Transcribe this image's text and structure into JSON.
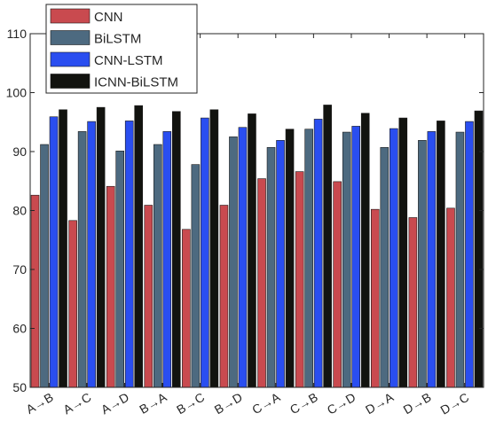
{
  "chart_data": {
    "type": "bar",
    "title": "",
    "xlabel": "",
    "ylabel": "",
    "ylim": [
      50,
      110
    ],
    "yticks": [
      50,
      60,
      70,
      80,
      90,
      100,
      110
    ],
    "grid": false,
    "legend_position": "top-left",
    "categories": [
      "A→B",
      "A→C",
      "A→D",
      "B→A",
      "B→C",
      "B→D",
      "C→A",
      "C→B",
      "C→D",
      "D→A",
      "D→B",
      "D→C"
    ],
    "series": [
      {
        "name": "CNN",
        "color": "#c94a4f",
        "values": [
          82.6,
          78.3,
          84.1,
          80.9,
          76.8,
          80.9,
          85.4,
          86.6,
          84.9,
          80.2,
          78.8,
          80.4
        ]
      },
      {
        "name": "BiLSTM",
        "color": "#4d6a80",
        "values": [
          91.2,
          93.4,
          90.1,
          91.2,
          87.8,
          92.5,
          90.7,
          93.8,
          93.3,
          90.7,
          91.9,
          93.3
        ]
      },
      {
        "name": "CNN-LSTM",
        "color": "#2a4ef0",
        "values": [
          95.9,
          95.1,
          95.2,
          93.4,
          95.7,
          94.1,
          91.9,
          95.5,
          94.3,
          93.9,
          93.4,
          95.1
        ]
      },
      {
        "name": "ICNN-BiLSTM",
        "color": "#12130f",
        "values": [
          97.1,
          97.5,
          97.8,
          96.8,
          97.1,
          96.4,
          93.8,
          97.9,
          96.5,
          95.7,
          95.2,
          96.9
        ]
      }
    ]
  }
}
